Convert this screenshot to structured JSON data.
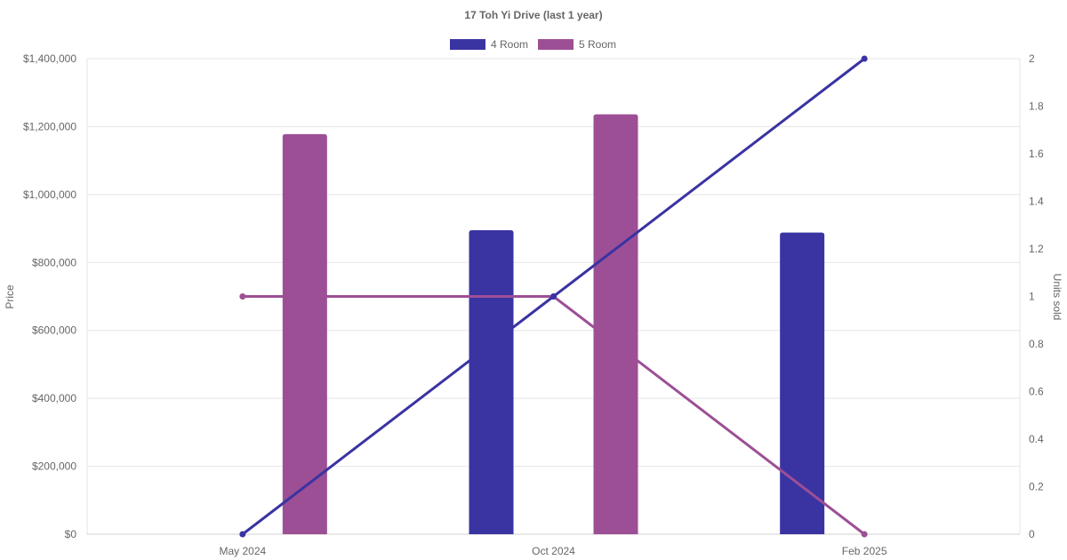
{
  "chart_data": {
    "type": "bar",
    "title": "17 Toh Yi Drive (last 1 year)",
    "categories": [
      "May 2024",
      "Oct 2024",
      "Feb 2025"
    ],
    "ylabel": "Price",
    "y2label": "Units sold",
    "ylim": [
      0,
      1400000
    ],
    "y2lim": [
      0,
      2
    ],
    "yticks": [
      "$0",
      "$200,000",
      "$400,000",
      "$600,000",
      "$800,000",
      "$1,000,000",
      "$1,200,000",
      "$1,400,000"
    ],
    "y2ticks": [
      "0",
      "0.2",
      "0.4",
      "0.6",
      "0.8",
      "1",
      "1.2",
      "1.4",
      "1.6",
      "1.8",
      "2"
    ],
    "legend_position": "top",
    "grid": true,
    "series": [
      {
        "name": "4 Room",
        "color": "#3a33a2",
        "price": [
          null,
          895000,
          888000
        ],
        "units": [
          0,
          1,
          2
        ]
      },
      {
        "name": "5 Room",
        "color": "#9d4f95",
        "price": [
          1178000,
          1236000,
          null
        ],
        "units": [
          1,
          1,
          0
        ]
      }
    ]
  }
}
